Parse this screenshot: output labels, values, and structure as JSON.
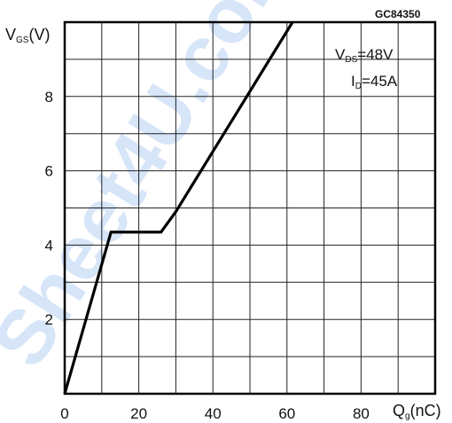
{
  "figure_code": "GC84350",
  "watermark_text": "Sheet4U.com",
  "conditions": {
    "line1": {
      "main": "V",
      "sub": "DS",
      "rest": "=48V"
    },
    "line2": {
      "main": "I",
      "sub": "D",
      "rest": "=45A"
    }
  },
  "chart_data": {
    "type": "line",
    "ylabel": {
      "main": "V",
      "sub": "GS",
      "rest": "(V)"
    },
    "xlabel": {
      "main": "Q",
      "sub": "g",
      "rest": "(nC)"
    },
    "xlim": [
      0,
      100
    ],
    "ylim": [
      0,
      10
    ],
    "x_major_ticks": [
      0,
      20,
      40,
      60,
      80
    ],
    "x_tick_labels": [
      "0",
      "20",
      "40",
      "60",
      "80"
    ],
    "y_tick_values": [
      2,
      4,
      6,
      8
    ],
    "y_tick_labels": [
      "2",
      "4",
      "6",
      "8"
    ],
    "grid": true,
    "grid_x_step": 10,
    "grid_y_step": 1,
    "line_color": "#000000",
    "series": [
      {
        "x": [
          0,
          12.5,
          26,
          30,
          61.5
        ],
        "y": [
          0,
          4.35,
          4.35,
          4.9,
          10
        ]
      }
    ]
  }
}
